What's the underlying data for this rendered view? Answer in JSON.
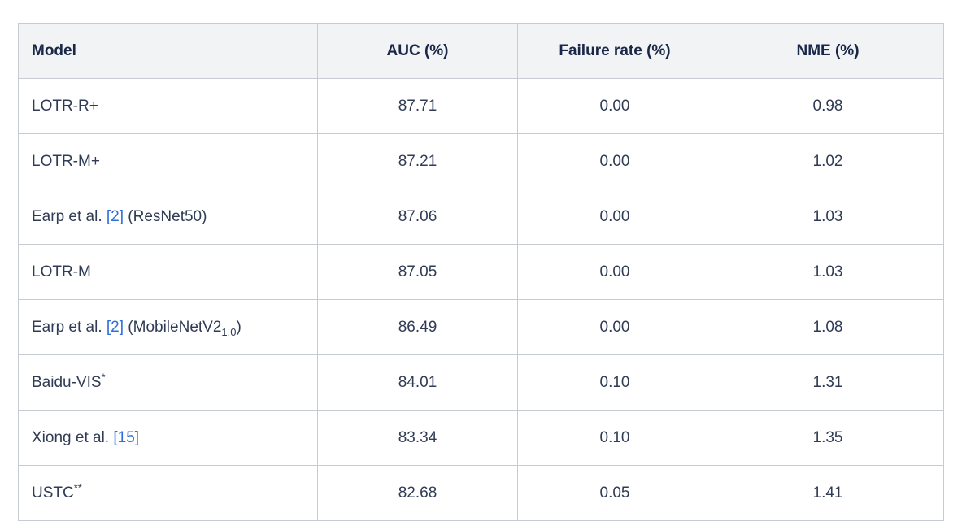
{
  "colors": {
    "page_bg": "#ffffff",
    "header_bg": "#f1f3f5",
    "border": "#c7ccd4",
    "header_text": "#1a2747",
    "body_text": "#303c55",
    "link": "#2e6ed9"
  },
  "table": {
    "columns": [
      {
        "key": "model",
        "label": "Model",
        "align": "left"
      },
      {
        "key": "auc",
        "label": "AUC (%)",
        "align": "center"
      },
      {
        "key": "failure_rate",
        "label": "Failure rate (%)",
        "align": "center"
      },
      {
        "key": "nme",
        "label": "NME (%)",
        "align": "center"
      }
    ],
    "rows": [
      {
        "model": [
          {
            "t": "text",
            "v": "LOTR-R+"
          }
        ],
        "auc": "87.71",
        "failure_rate": "0.00",
        "nme": "0.98"
      },
      {
        "model": [
          {
            "t": "text",
            "v": "LOTR-M+"
          }
        ],
        "auc": "87.21",
        "failure_rate": "0.00",
        "nme": "1.02"
      },
      {
        "model": [
          {
            "t": "text",
            "v": "Earp et al. "
          },
          {
            "t": "link",
            "v": "[2]"
          },
          {
            "t": "text",
            "v": " (ResNet50)"
          }
        ],
        "auc": "87.06",
        "failure_rate": "0.00",
        "nme": "1.03"
      },
      {
        "model": [
          {
            "t": "text",
            "v": "LOTR-M"
          }
        ],
        "auc": "87.05",
        "failure_rate": "0.00",
        "nme": "1.03"
      },
      {
        "model": [
          {
            "t": "text",
            "v": "Earp et al. "
          },
          {
            "t": "link",
            "v": "[2]"
          },
          {
            "t": "text",
            "v": " (MobileNetV2"
          },
          {
            "t": "sub",
            "v": "1.0"
          },
          {
            "t": "text",
            "v": ")"
          }
        ],
        "auc": "86.49",
        "failure_rate": "0.00",
        "nme": "1.08"
      },
      {
        "model": [
          {
            "t": "text",
            "v": "Baidu-VIS"
          },
          {
            "t": "sup",
            "v": "*"
          }
        ],
        "auc": "84.01",
        "failure_rate": "0.10",
        "nme": "1.31"
      },
      {
        "model": [
          {
            "t": "text",
            "v": "Xiong et al. "
          },
          {
            "t": "link",
            "v": "[15]"
          }
        ],
        "auc": "83.34",
        "failure_rate": "0.10",
        "nme": "1.35"
      },
      {
        "model": [
          {
            "t": "text",
            "v": "USTC"
          },
          {
            "t": "sup",
            "v": "**"
          }
        ],
        "auc": "82.68",
        "failure_rate": "0.05",
        "nme": "1.41"
      }
    ]
  },
  "chart_data": {
    "type": "table",
    "title": "",
    "columns": [
      "Model",
      "AUC (%)",
      "Failure rate (%)",
      "NME (%)"
    ],
    "rows": [
      [
        "LOTR-R+",
        87.71,
        0.0,
        0.98
      ],
      [
        "LOTR-M+",
        87.21,
        0.0,
        1.02
      ],
      [
        "Earp et al. [2] (ResNet50)",
        87.06,
        0.0,
        1.03
      ],
      [
        "LOTR-M",
        87.05,
        0.0,
        1.03
      ],
      [
        "Earp et al. [2] (MobileNetV2_1.0)",
        86.49,
        0.0,
        1.08
      ],
      [
        "Baidu-VIS*",
        84.01,
        0.1,
        1.31
      ],
      [
        "Xiong et al. [15]",
        83.34,
        0.1,
        1.35
      ],
      [
        "USTC**",
        82.68,
        0.05,
        1.41
      ]
    ]
  }
}
